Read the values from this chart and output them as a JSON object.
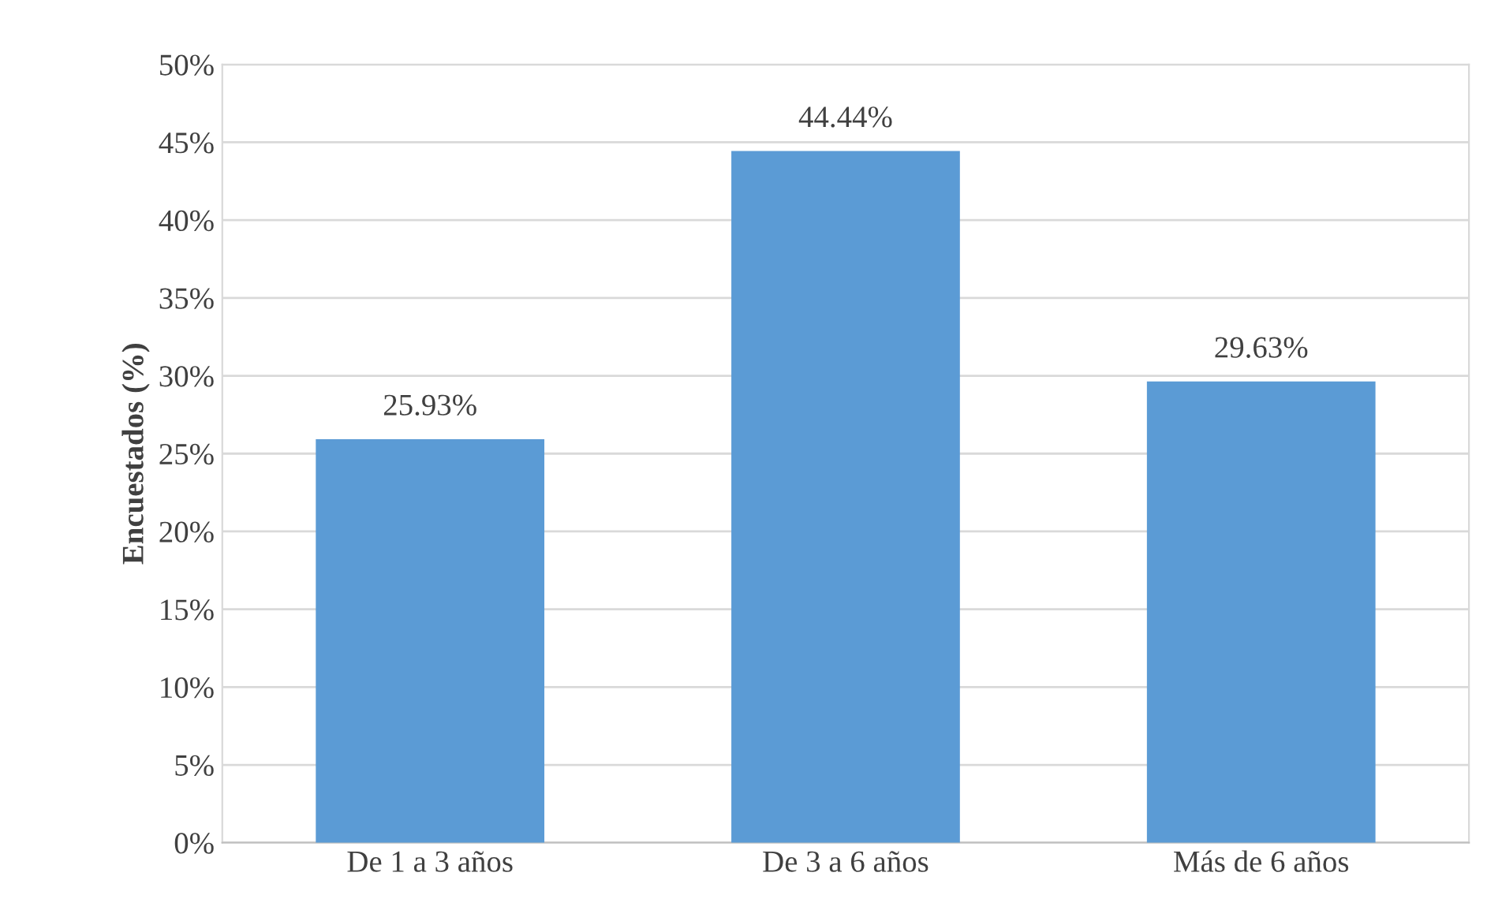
{
  "chart_data": {
    "type": "bar",
    "ylabel": "Encuestados (%)",
    "categories": [
      "De 1 a 3 años",
      "De 3 a 6 años",
      "Más de 6 años"
    ],
    "values": [
      25.93,
      44.44,
      29.63
    ],
    "color": "#5b9bd5",
    "value_labels": [
      "25.93%",
      "44.44%",
      "29.63%"
    ],
    "ylim": [
      0,
      50
    ],
    "yticks": [
      {
        "value": 0,
        "label": "0%"
      },
      {
        "value": 5,
        "label": "5%"
      },
      {
        "value": 10,
        "label": "10%"
      },
      {
        "value": 15,
        "label": "15%"
      },
      {
        "value": 20,
        "label": "20%"
      },
      {
        "value": 25,
        "label": "25%"
      },
      {
        "value": 30,
        "label": "30%"
      },
      {
        "value": 35,
        "label": "35%"
      },
      {
        "value": 40,
        "label": "40%"
      },
      {
        "value": 45,
        "label": "45%"
      },
      {
        "value": 50,
        "label": "50%"
      }
    ],
    "grid": "y",
    "legend": false
  }
}
